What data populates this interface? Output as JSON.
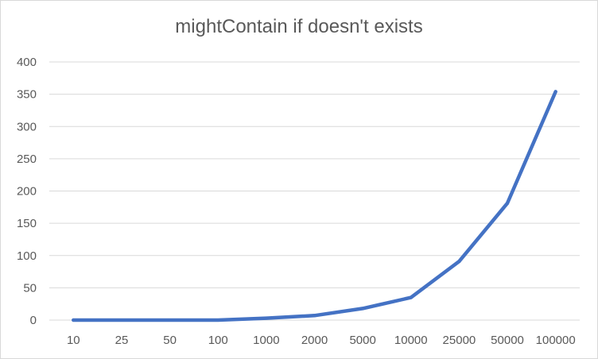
{
  "chart_data": {
    "type": "line",
    "title": "mightContain if doesn't exists",
    "xlabel": "",
    "ylabel": "",
    "categories": [
      "10",
      "25",
      "50",
      "100",
      "1000",
      "2000",
      "5000",
      "10000",
      "25000",
      "50000",
      "100000"
    ],
    "series": [
      {
        "values": [
          0,
          0,
          0,
          0,
          3,
          7,
          18,
          35,
          91,
          181,
          354
        ]
      }
    ],
    "ylim": [
      0,
      400
    ],
    "yticks": [
      "0",
      "50",
      "100",
      "150",
      "200",
      "250",
      "300",
      "350",
      "400"
    ],
    "grid": true,
    "legend": "none",
    "colors": {
      "line": "#4472c4",
      "grid": "#d9d9d9",
      "text": "#595959"
    }
  }
}
